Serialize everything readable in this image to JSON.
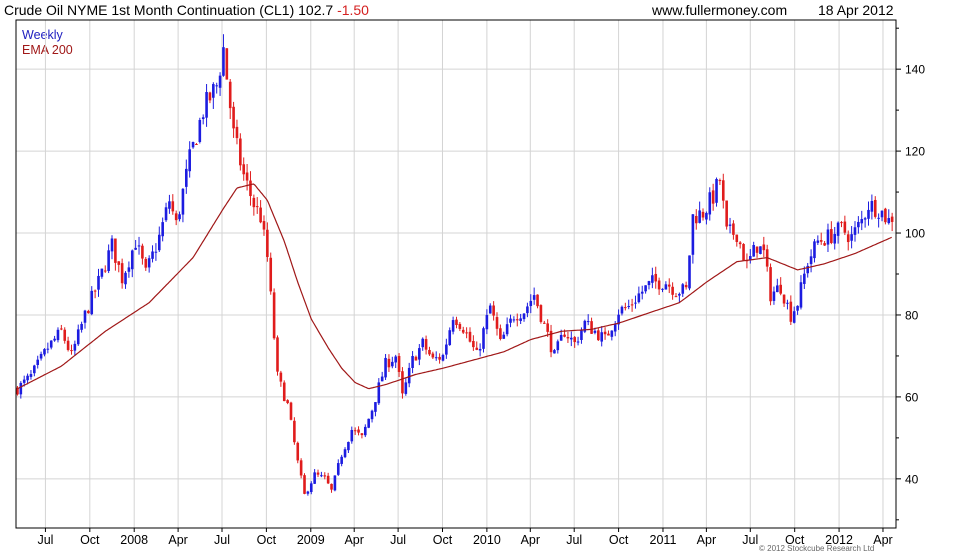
{
  "header": {
    "title": "Crude Oil NYME 1st Month Continuation (CL1)",
    "last": "102.7",
    "change": "-1.50",
    "website": "www.fullermoney.com",
    "date": "18 Apr 2012"
  },
  "legend": {
    "interval": "Weekly",
    "indicator": "EMA 200"
  },
  "copyright": "© 2012 Stockcube Research Ltd",
  "colors": {
    "up": "#1c1ce0",
    "down": "#e01c1c",
    "ema": "#a01818",
    "grid": "#d4d4d4",
    "frame": "#000000"
  },
  "chart_data": {
    "type": "candlestick",
    "frequency": "weekly",
    "ylim": [
      28,
      152
    ],
    "yticks": [
      40,
      60,
      80,
      100,
      120,
      140
    ],
    "xlim": [
      "2007-05-01",
      "2012-04-28"
    ],
    "xticks": [
      {
        "date": "2007-07-01",
        "label": "Jul"
      },
      {
        "date": "2007-10-01",
        "label": "Oct"
      },
      {
        "date": "2008-01-01",
        "label": "2008"
      },
      {
        "date": "2008-04-01",
        "label": "Apr"
      },
      {
        "date": "2008-07-01",
        "label": "Jul"
      },
      {
        "date": "2008-10-01",
        "label": "Oct"
      },
      {
        "date": "2009-01-01",
        "label": "2009"
      },
      {
        "date": "2009-04-01",
        "label": "Apr"
      },
      {
        "date": "2009-07-01",
        "label": "Jul"
      },
      {
        "date": "2009-10-01",
        "label": "Oct"
      },
      {
        "date": "2010-01-01",
        "label": "2010"
      },
      {
        "date": "2010-04-01",
        "label": "Apr"
      },
      {
        "date": "2010-07-01",
        "label": "Jul"
      },
      {
        "date": "2010-10-01",
        "label": "Oct"
      },
      {
        "date": "2011-01-01",
        "label": "2011"
      },
      {
        "date": "2011-04-01",
        "label": "Apr"
      },
      {
        "date": "2011-07-01",
        "label": "Jul"
      },
      {
        "date": "2011-10-01",
        "label": "Oct"
      },
      {
        "date": "2012-01-01",
        "label": "2012"
      },
      {
        "date": "2012-04-01",
        "label": "Apr"
      }
    ],
    "grid": true,
    "price_keypoints": [
      [
        "2007-05-04",
        62
      ],
      [
        "2007-06-01",
        65
      ],
      [
        "2007-07-06",
        72
      ],
      [
        "2007-08-03",
        76
      ],
      [
        "2007-08-24",
        70
      ],
      [
        "2007-09-21",
        80
      ],
      [
        "2007-10-19",
        88
      ],
      [
        "2007-11-16",
        97
      ],
      [
        "2007-12-07",
        89
      ],
      [
        "2008-01-04",
        98
      ],
      [
        "2008-01-25",
        90
      ],
      [
        "2008-02-22",
        99
      ],
      [
        "2008-03-14",
        108
      ],
      [
        "2008-03-28",
        102
      ],
      [
        "2008-04-25",
        118
      ],
      [
        "2008-05-23",
        130
      ],
      [
        "2008-06-20",
        136
      ],
      [
        "2008-07-04",
        145
      ],
      [
        "2008-07-25",
        124
      ],
      [
        "2008-08-15",
        114
      ],
      [
        "2008-09-05",
        107
      ],
      [
        "2008-09-19",
        104
      ],
      [
        "2008-10-03",
        94
      ],
      [
        "2008-10-24",
        65
      ],
      [
        "2008-11-14",
        58
      ],
      [
        "2008-12-05",
        44
      ],
      [
        "2008-12-19",
        36
      ],
      [
        "2009-01-09",
        41
      ],
      [
        "2009-01-30",
        40
      ],
      [
        "2009-02-13",
        37
      ],
      [
        "2009-03-06",
        46
      ],
      [
        "2009-03-27",
        52
      ],
      [
        "2009-04-17",
        50
      ],
      [
        "2009-05-08",
        57
      ],
      [
        "2009-06-05",
        68
      ],
      [
        "2009-06-26",
        70
      ],
      [
        "2009-07-10",
        60
      ],
      [
        "2009-07-31",
        69
      ],
      [
        "2009-08-21",
        73
      ],
      [
        "2009-09-11",
        69
      ],
      [
        "2009-10-02",
        70
      ],
      [
        "2009-10-23",
        80
      ],
      [
        "2009-11-13",
        77
      ],
      [
        "2009-12-11",
        70
      ],
      [
        "2010-01-08",
        82
      ],
      [
        "2010-01-29",
        73
      ],
      [
        "2010-02-26",
        80
      ],
      [
        "2010-03-19",
        81
      ],
      [
        "2010-04-09",
        85
      ],
      [
        "2010-05-07",
        75
      ],
      [
        "2010-05-21",
        70
      ],
      [
        "2010-06-11",
        76
      ],
      [
        "2010-07-02",
        73
      ],
      [
        "2010-07-23",
        78
      ],
      [
        "2010-08-13",
        76
      ],
      [
        "2010-09-03",
        74
      ],
      [
        "2010-10-01",
        81
      ],
      [
        "2010-10-22",
        82
      ],
      [
        "2010-11-12",
        85
      ],
      [
        "2010-12-10",
        88
      ],
      [
        "2011-01-07",
        88
      ],
      [
        "2011-01-28",
        86
      ],
      [
        "2011-02-18",
        86
      ],
      [
        "2011-03-04",
        104
      ],
      [
        "2011-03-25",
        105
      ],
      [
        "2011-04-15",
        109
      ],
      [
        "2011-04-29",
        113
      ],
      [
        "2011-05-13",
        100
      ],
      [
        "2011-06-03",
        100
      ],
      [
        "2011-06-24",
        92
      ],
      [
        "2011-07-15",
        97
      ],
      [
        "2011-07-29",
        95
      ],
      [
        "2011-08-12",
        85
      ],
      [
        "2011-09-02",
        87
      ],
      [
        "2011-09-23",
        80
      ],
      [
        "2011-10-07",
        83
      ],
      [
        "2011-10-28",
        93
      ],
      [
        "2011-11-18",
        98
      ],
      [
        "2011-12-09",
        99
      ],
      [
        "2012-01-06",
        101
      ],
      [
        "2012-01-27",
        99
      ],
      [
        "2012-02-17",
        103
      ],
      [
        "2012-03-02",
        107
      ],
      [
        "2012-03-23",
        106
      ],
      [
        "2012-04-13",
        103
      ],
      [
        "2012-04-20",
        102.7
      ]
    ],
    "ema200_keypoints": [
      [
        "2007-05-04",
        62
      ],
      [
        "2007-08-03",
        67.5
      ],
      [
        "2007-11-02",
        76
      ],
      [
        "2008-02-01",
        83
      ],
      [
        "2008-05-02",
        94
      ],
      [
        "2008-07-04",
        106
      ],
      [
        "2008-08-01",
        111
      ],
      [
        "2008-09-05",
        112
      ],
      [
        "2008-10-03",
        108
      ],
      [
        "2008-11-07",
        98
      ],
      [
        "2008-12-05",
        88
      ],
      [
        "2009-01-02",
        79
      ],
      [
        "2009-02-06",
        72
      ],
      [
        "2009-03-06",
        67
      ],
      [
        "2009-04-03",
        63.5
      ],
      [
        "2009-05-01",
        62
      ],
      [
        "2009-06-05",
        63
      ],
      [
        "2009-08-07",
        65.5
      ],
      [
        "2009-10-02",
        67
      ],
      [
        "2009-12-04",
        69
      ],
      [
        "2010-02-05",
        71
      ],
      [
        "2010-04-02",
        74
      ],
      [
        "2010-06-04",
        76
      ],
      [
        "2010-08-06",
        76.5
      ],
      [
        "2010-10-01",
        78
      ],
      [
        "2010-12-03",
        80.5
      ],
      [
        "2011-02-04",
        83
      ],
      [
        "2011-04-01",
        88
      ],
      [
        "2011-06-03",
        93
      ],
      [
        "2011-08-05",
        94
      ],
      [
        "2011-10-07",
        91
      ],
      [
        "2011-12-02",
        92.5
      ],
      [
        "2012-02-03",
        95
      ],
      [
        "2012-04-20",
        99
      ]
    ]
  }
}
